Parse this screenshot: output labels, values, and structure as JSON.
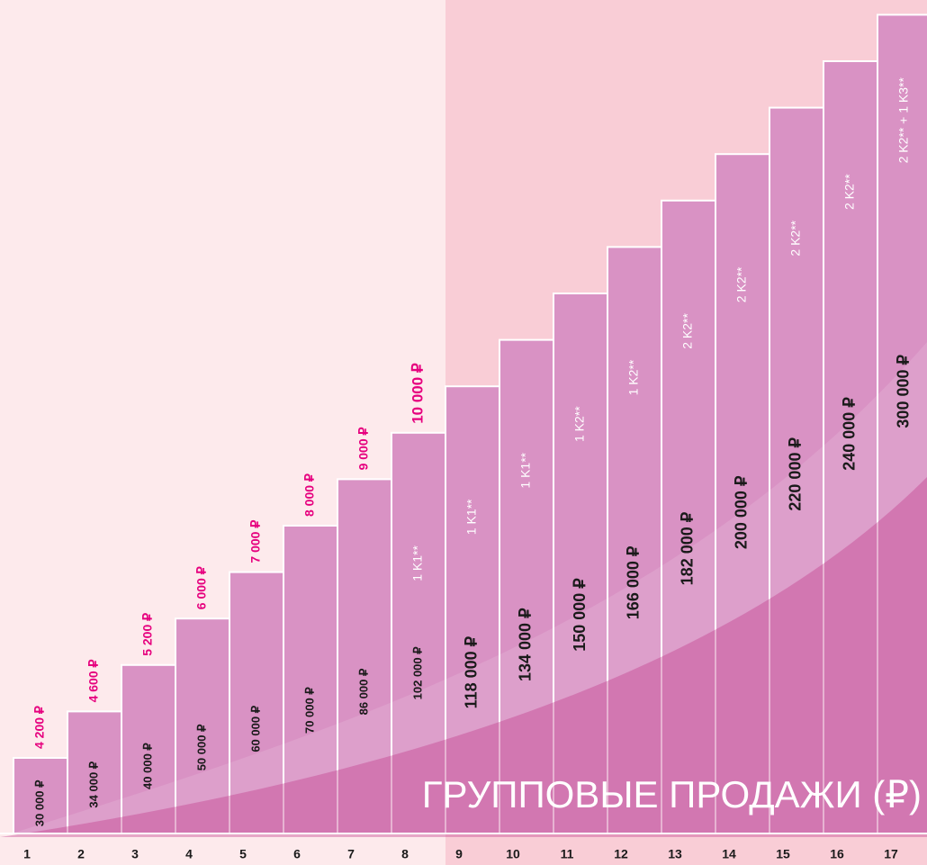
{
  "title": "ГРУППОВЫЕ ПРОДАЖИ (₽)",
  "levels": [
    {
      "number": "1",
      "sales": "30 000 ₽",
      "bonus": "4 200 ₽"
    },
    {
      "number": "2",
      "sales": "34 000 ₽",
      "bonus": "4 600 ₽"
    },
    {
      "number": "3",
      "sales": "40 000 ₽",
      "bonus": "5 200 ₽"
    },
    {
      "number": "4",
      "sales": "50 000 ₽",
      "bonus": "6 000 ₽"
    },
    {
      "number": "5",
      "sales": "60 000 ₽",
      "bonus": "7 000 ₽"
    },
    {
      "number": "6",
      "sales": "70 000 ₽",
      "bonus": "8 000 ₽"
    },
    {
      "number": "7",
      "sales": "86 000 ₽",
      "bonus": "9 000 ₽"
    },
    {
      "number": "8",
      "sales": "102 000 ₽",
      "bonus": "10 000 ₽",
      "qualification": "1 K1**"
    },
    {
      "number": "9",
      "sales": "118 000 ₽",
      "qualification": "1 K1**"
    },
    {
      "number": "10",
      "sales": "134 000 ₽",
      "qualification": "1 K1**"
    },
    {
      "number": "11",
      "sales": "150 000 ₽",
      "qualification": "1 K2**"
    },
    {
      "number": "12",
      "sales": "166 000 ₽",
      "qualification": "1 K2**"
    },
    {
      "number": "13",
      "sales": "182  000 ₽",
      "qualification": "2 K2**"
    },
    {
      "number": "14",
      "sales": "200 000 ₽",
      "qualification": "2 K2**"
    },
    {
      "number": "15",
      "sales": "220 000 ₽",
      "qualification": "2 K2**"
    },
    {
      "number": "16",
      "sales": "240 000 ₽",
      "qualification": "2 K2**"
    },
    {
      "number": "17",
      "sales": "300 000 ₽",
      "qualification": "2 K2** + 1 K3**"
    }
  ]
}
